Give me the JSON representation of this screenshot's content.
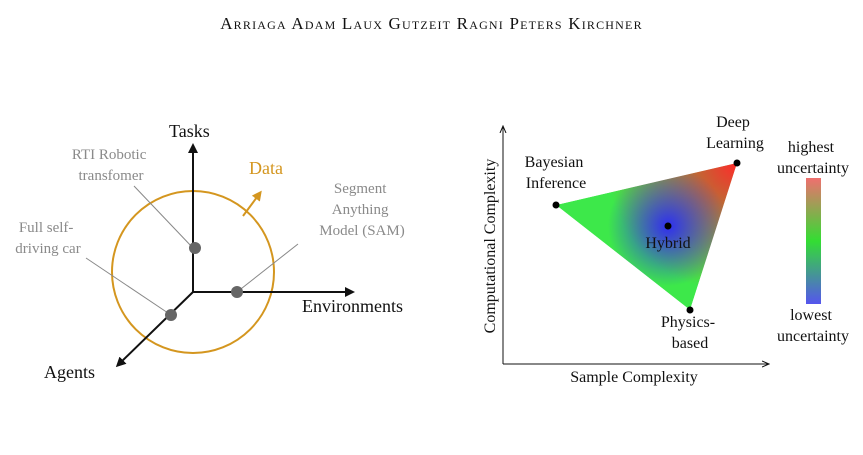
{
  "header": {
    "authors": "Arriaga Adam Laux Gutzeit Ragni Peters Kirchner"
  },
  "left_diagram": {
    "axes": {
      "tasks": "Tasks",
      "environments": "Environments",
      "agents": "Agents"
    },
    "data_label": "Data",
    "examples": {
      "rti_line1": "RTI Robotic",
      "rti_line2": "transfomer",
      "sam_line1": "Segment",
      "sam_line2": "Anything",
      "sam_line3": "Model (SAM)",
      "car_line1": "Full self-",
      "car_line2": "driving car"
    },
    "colors": {
      "data": "#d4961f",
      "example_points": "#666666"
    }
  },
  "right_diagram": {
    "xlabel": "Sample Complexity",
    "ylabel": "Computational Complexity",
    "vertices": {
      "bayesian_line1": "Bayesian",
      "bayesian_line2": "Inference",
      "deep_line1": "Deep",
      "deep_line2": "Learning",
      "physics_line1": "Physics-",
      "physics_line2": "based",
      "hybrid": "Hybrid"
    },
    "legend": {
      "top_line1": "highest",
      "top_line2": "uncertainty",
      "bottom_line1": "lowest",
      "bottom_line2": "uncertainty"
    },
    "colors": {
      "high": "#ef6f6f",
      "mid": "#33dd33",
      "low": "#5555ee"
    }
  }
}
